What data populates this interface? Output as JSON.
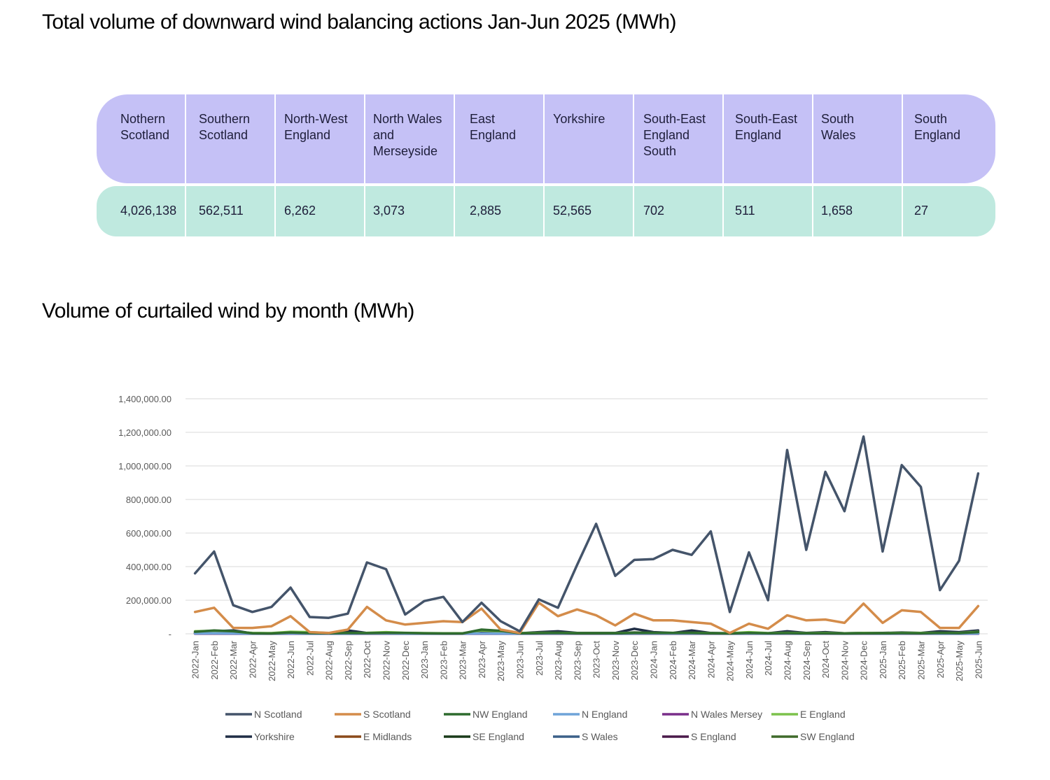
{
  "title": "Total volume of downward wind balancing actions Jan-Jun 2025 (MWh)",
  "table": {
    "headers": [
      "Nothern\nScotland",
      "Southern\nScotland",
      "North-West\nEngland",
      "North Wales\nand\nMerseyside",
      "East\nEngland",
      "Yorkshire",
      "South-East\nEngland\nSouth",
      "South-East\nEngland",
      "South\nWales",
      "South\nEngland"
    ],
    "values": [
      "4,026,138",
      "562,511",
      "6,262",
      "3,073",
      "2,885",
      "52,565",
      "702",
      "511",
      "1,658",
      "27"
    ],
    "header_color": "#c5c1f6",
    "value_color": "#bfe9df"
  },
  "chart_title": "Volume of curtailed wind by month (MWh)",
  "chart_data": {
    "type": "line",
    "x": [
      "2022-Jan",
      "2022-Feb",
      "2022-Mar",
      "2022-Apr",
      "2022-May",
      "2022-Jun",
      "2022-Jul",
      "2022-Aug",
      "2022-Sep",
      "2022-Oct",
      "2022-Nov",
      "2022-Dec",
      "2023-Jan",
      "2023-Feb",
      "2023-Mar",
      "2023-Apr",
      "2023-May",
      "2023-Jun",
      "2023-Jul",
      "2023-Aug",
      "2023-Sep",
      "2023-Oct",
      "2023-Nov",
      "2023-Dec",
      "2024-Jan",
      "2024-Feb",
      "2024-Mar",
      "2024-Apr",
      "2024-May",
      "2024-Jun",
      "2024-Jul",
      "2024-Aug",
      "2024-Sep",
      "2024-Oct",
      "2024-Nov",
      "2024-Dec",
      "2025-Jan",
      "2025-Feb",
      "2025-Mar",
      "2025-Apr",
      "2025-May",
      "2025-Jun"
    ],
    "ylim": [
      0,
      1400000
    ],
    "yticks": [
      0,
      200000,
      400000,
      600000,
      800000,
      1000000,
      1200000,
      1400000
    ],
    "ytick_labels": [
      "-",
      "200,000.00",
      "400,000.00",
      "600,000.00",
      "800,000.00",
      "1,000,000.00",
      "1,200,000.00",
      "1,400,000.00"
    ],
    "grid": true,
    "legend_position": "bottom",
    "series": [
      {
        "name": "N Scotland",
        "color": "#44546a",
        "values": [
          360000,
          490000,
          170000,
          130000,
          160000,
          275000,
          100000,
          95000,
          120000,
          425000,
          385000,
          115000,
          195000,
          220000,
          70000,
          185000,
          75000,
          15000,
          205000,
          155000,
          410000,
          655000,
          345000,
          440000,
          445000,
          500000,
          470000,
          610000,
          130000,
          485000,
          200000,
          1095000,
          500000,
          965000,
          730000,
          1175000,
          490000,
          1005000,
          875000,
          260000,
          435000,
          955000
        ]
      },
      {
        "name": "S Scotland",
        "color": "#d48c4a",
        "values": [
          130000,
          155000,
          35000,
          35000,
          45000,
          105000,
          10000,
          5000,
          25000,
          160000,
          80000,
          55000,
          65000,
          75000,
          70000,
          150000,
          25000,
          5000,
          185000,
          105000,
          145000,
          110000,
          50000,
          120000,
          80000,
          80000,
          70000,
          60000,
          5000,
          60000,
          30000,
          110000,
          80000,
          85000,
          65000,
          180000,
          65000,
          140000,
          130000,
          35000,
          35000,
          165000
        ]
      },
      {
        "name": "NW England",
        "color": "#2e6b2e",
        "values": [
          12000,
          20000,
          15000,
          3000,
          2000,
          8000,
          4000,
          3000,
          5000,
          4000,
          6000,
          5000,
          3000,
          2000,
          2000,
          25000,
          18000,
          3000,
          4000,
          5000,
          3000,
          3000,
          3000,
          5000,
          5000,
          5000,
          5000,
          3000,
          2000,
          5000,
          3000,
          4000,
          3000,
          3000,
          2000,
          3000,
          3000,
          4000,
          3000,
          5000,
          4000,
          10000
        ]
      },
      {
        "name": "N England",
        "color": "#6fa3d8",
        "values": [
          2000,
          3000,
          2000,
          1000,
          1000,
          2000,
          1000,
          1000,
          1000,
          2000,
          2000,
          1000,
          1000,
          1000,
          1000,
          2000,
          1000,
          1000,
          2000,
          2000,
          2000,
          2000,
          1000,
          2000,
          2000,
          2000,
          2000,
          2000,
          1000,
          2000,
          1000,
          2000,
          1000,
          2000,
          1000,
          2000,
          1000,
          2000,
          2000,
          1000,
          1000,
          2000
        ]
      },
      {
        "name": "N Wales Mersey",
        "color": "#7a2f8a",
        "values": [
          1000,
          2000,
          1000,
          500,
          500,
          1000,
          500,
          500,
          500,
          1000,
          1000,
          500,
          500,
          500,
          500,
          1000,
          500,
          500,
          1000,
          1000,
          1000,
          1000,
          500,
          1000,
          1000,
          1000,
          1000,
          1000,
          500,
          1000,
          500,
          1000,
          500,
          1000,
          500,
          1000,
          500,
          1000,
          1000,
          500,
          500,
          1000
        ]
      },
      {
        "name": "E England",
        "color": "#7cc24c",
        "values": [
          15000,
          18000,
          12000,
          5000,
          4000,
          12000,
          10000,
          4000,
          5000,
          6000,
          10000,
          6000,
          4000,
          3000,
          3000,
          20000,
          15000,
          4000,
          6000,
          6000,
          4000,
          4000,
          4000,
          6000,
          6000,
          6000,
          6000,
          4000,
          3000,
          10000,
          4000,
          6000,
          4000,
          5000,
          3000,
          5000,
          4000,
          6000,
          5000,
          6000,
          5000,
          12000
        ]
      },
      {
        "name": "Yorkshire",
        "color": "#1f2d45",
        "values": [
          5000,
          15000,
          20000,
          3000,
          3000,
          5000,
          3000,
          3000,
          20000,
          5000,
          5000,
          3000,
          3000,
          3000,
          3000,
          5000,
          5000,
          3000,
          10000,
          15000,
          5000,
          5000,
          5000,
          30000,
          10000,
          5000,
          20000,
          5000,
          3000,
          5000,
          3000,
          15000,
          5000,
          10000,
          3000,
          5000,
          5000,
          8000,
          5000,
          15000,
          10000,
          20000
        ]
      },
      {
        "name": "E Midlands",
        "color": "#8a4a1a",
        "values": [
          3000,
          4000,
          3000,
          1000,
          1000,
          3000,
          1000,
          1000,
          2000,
          3000,
          3000,
          1000,
          1000,
          1000,
          1000,
          3000,
          2000,
          1000,
          3000,
          3000,
          2000,
          2000,
          1000,
          3000,
          3000,
          3000,
          3000,
          2000,
          1000,
          3000,
          1000,
          3000,
          2000,
          2000,
          1000,
          3000,
          1000,
          3000,
          3000,
          2000,
          2000,
          3000
        ]
      },
      {
        "name": "SE England",
        "color": "#1a3a1a",
        "values": [
          8000,
          10000,
          8000,
          2000,
          2000,
          5000,
          3000,
          2000,
          5000,
          4000,
          5000,
          3000,
          2000,
          2000,
          2000,
          8000,
          6000,
          2000,
          5000,
          6000,
          3000,
          3000,
          3000,
          8000,
          5000,
          4000,
          5000,
          3000,
          2000,
          5000,
          2000,
          5000,
          3000,
          4000,
          2000,
          4000,
          3000,
          5000,
          4000,
          6000,
          5000,
          15000
        ]
      },
      {
        "name": "S Wales",
        "color": "#3b6088",
        "values": [
          2000,
          3000,
          2000,
          1000,
          1000,
          2000,
          1000,
          1000,
          1000,
          2000,
          2000,
          1000,
          1000,
          1000,
          1000,
          2000,
          1000,
          1000,
          2000,
          2000,
          1000,
          1000,
          1000,
          2000,
          2000,
          2000,
          2000,
          1000,
          1000,
          2000,
          1000,
          2000,
          1000,
          2000,
          1000,
          2000,
          1000,
          2000,
          2000,
          1000,
          1000,
          2000
        ]
      },
      {
        "name": "S England",
        "color": "#4a1a4a",
        "values": [
          500,
          1000,
          500,
          300,
          300,
          500,
          300,
          300,
          300,
          500,
          500,
          300,
          300,
          300,
          300,
          500,
          300,
          300,
          500,
          500,
          300,
          300,
          300,
          500,
          500,
          500,
          500,
          300,
          300,
          500,
          300,
          500,
          300,
          500,
          300,
          500,
          300,
          500,
          500,
          300,
          300,
          500
        ]
      },
      {
        "name": "SW England",
        "color": "#3f6a2a",
        "values": [
          4000,
          6000,
          5000,
          2000,
          2000,
          4000,
          2000,
          2000,
          3000,
          3000,
          4000,
          2000,
          2000,
          2000,
          2000,
          5000,
          4000,
          2000,
          3000,
          4000,
          2000,
          2000,
          2000,
          4000,
          3000,
          3000,
          3000,
          2000,
          2000,
          4000,
          2000,
          3000,
          2000,
          3000,
          2000,
          3000,
          2000,
          3000,
          3000,
          3000,
          3000,
          6000
        ]
      }
    ]
  }
}
